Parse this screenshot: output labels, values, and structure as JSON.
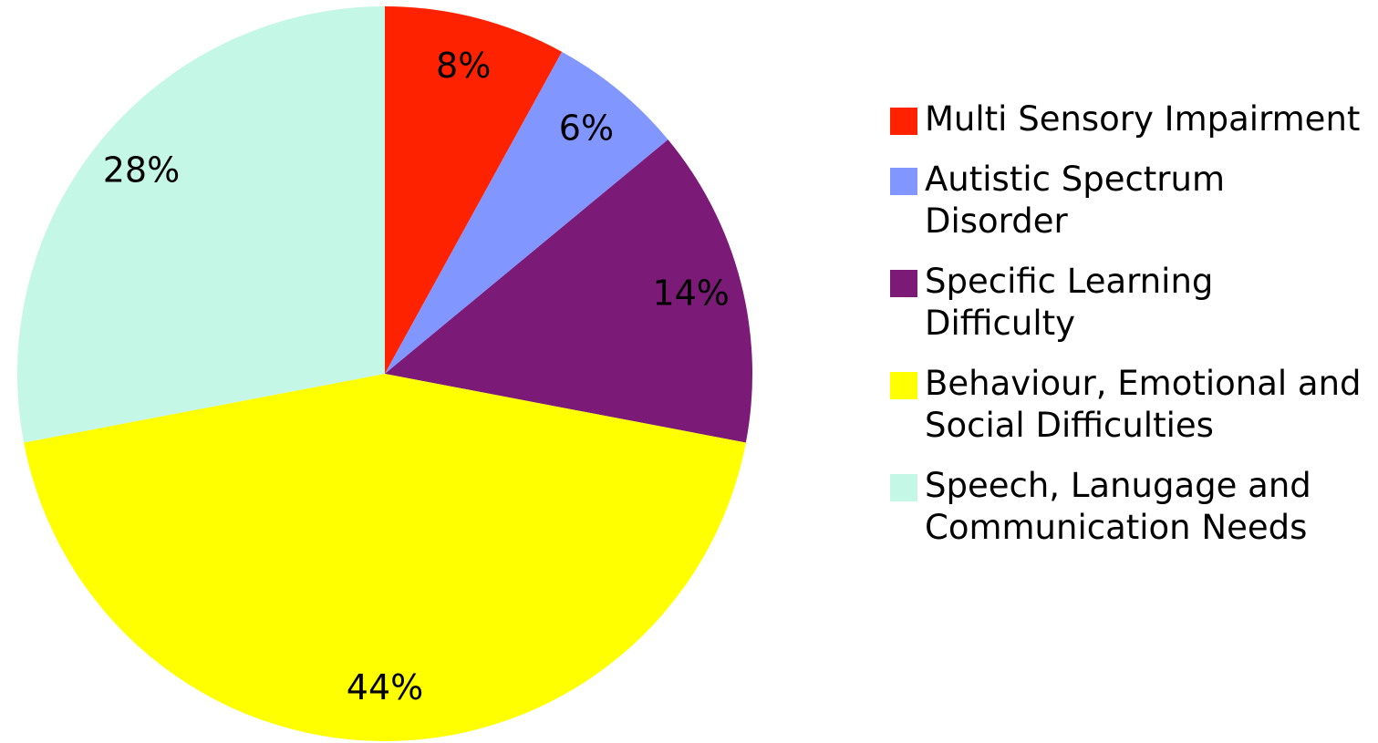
{
  "chart_data": {
    "type": "pie",
    "categories": [
      "Multi Sensory Impairment",
      "Autistic Spectrum Disorder",
      "Specific Learning Difficulty",
      "Behaviour, Emotional and Social Difficulties",
      "Speech, Lanugage and Communication Needs"
    ],
    "values": [
      8,
      6,
      14,
      44,
      28
    ],
    "value_labels": [
      "8%",
      "6%",
      "14%",
      "44%",
      "28%"
    ],
    "colors": [
      "#ff2200",
      "#8296ff",
      "#7b1a77",
      "#ffff00",
      "#c4f7e6"
    ],
    "legend": "right"
  }
}
